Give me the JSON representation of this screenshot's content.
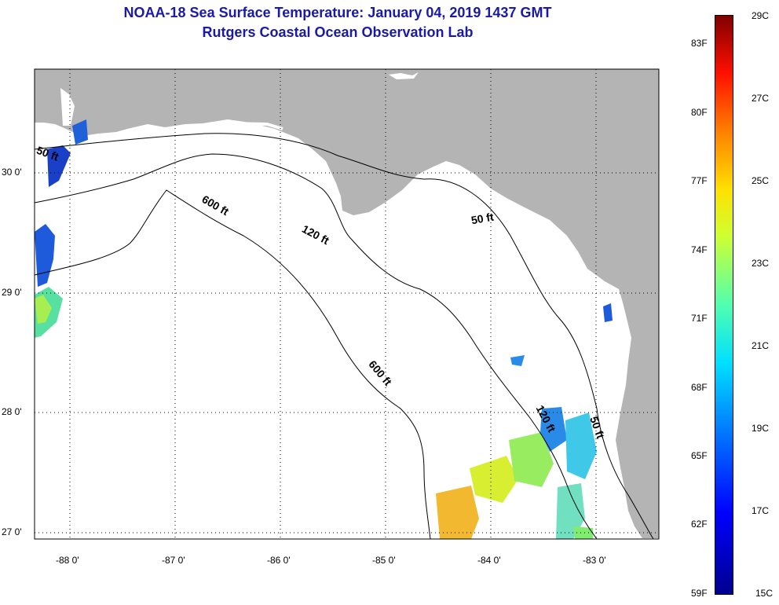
{
  "title": {
    "line1": "NOAA-18 Sea Surface Temperature:  January 04, 2019 1437 GMT",
    "line2": "Rutgers Coastal Ocean Observation Lab"
  },
  "map": {
    "colors": {
      "land": "#b4b4b4",
      "ocean": "#ffffff",
      "contour": "#000000",
      "grid": "#000000"
    },
    "lon_ticks": [
      "-88 0'",
      "-87 0'",
      "-86 0'",
      "-85 0'",
      "-84 0'",
      "-83 0'"
    ],
    "lat_ticks": [
      "30 0'",
      "29 0'",
      "28 0'",
      "27 0'"
    ],
    "contour_labels": {
      "d50_a": "50 ft",
      "d50_b": "50 ft",
      "d50_c": "50 ft",
      "d120_a": "120 ft",
      "d120_b": "120 ft",
      "d600_a": "600 ft",
      "d600_b": "600 ft"
    }
  },
  "colorbar": {
    "celsius": [
      "29C",
      "27C",
      "25C",
      "23C",
      "21C",
      "19C",
      "17C",
      "15C"
    ],
    "fahrenheit": [
      "83F",
      "80F",
      "77F",
      "74F",
      "71F",
      "68F",
      "65F",
      "62F",
      "59F"
    ]
  }
}
